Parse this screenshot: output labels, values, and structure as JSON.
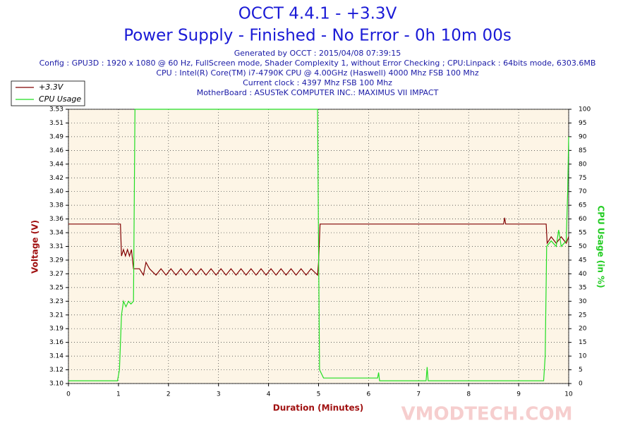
{
  "chart_data": {
    "type": "line",
    "title": "OCCT 4.4.1 - +3.3V",
    "subtitle": "Power Supply - Finished - No Error - 0h 10m 00s",
    "info": [
      "Generated by OCCT : 2015/04/08 07:39:15",
      "Config : GPU3D : 1920 x 1080 @ 60 Hz, FullScreen mode, Shader Complexity 1, without Error Checking ; CPU:Linpack : 64bits mode, 6303.6MB",
      "CPU : Intel(R) Core(TM) i7-4790K CPU @ 4.00GHz (Haswell) 4000 Mhz FSB 100 Mhz",
      "Current clock : 4397 Mhz FSB 100 Mhz",
      "MotherBoard : ASUSTeK COMPUTER INC.: MAXIMUS VII IMPACT"
    ],
    "watermark": "VMODTECH.COM",
    "x_label": "Duration (Minutes)",
    "y_label": "Voltage (V)",
    "y2_label": "CPU Usage (in %)",
    "xlim": [
      0,
      10
    ],
    "xticks": [
      0,
      1,
      2,
      3,
      4,
      5,
      6,
      7,
      8,
      9,
      10
    ],
    "ylim": [
      3.1,
      3.53
    ],
    "yticks": [
      {
        "value": 3.1,
        "label": "3.10"
      },
      {
        "value": 3.1215,
        "label": "3.12"
      },
      {
        "value": 3.143,
        "label": "3.14"
      },
      {
        "value": 3.1645,
        "label": "3.16"
      },
      {
        "value": 3.186,
        "label": "3.19"
      },
      {
        "value": 3.2075,
        "label": "3.21"
      },
      {
        "value": 3.229,
        "label": "3.23"
      },
      {
        "value": 3.2505,
        "label": "3.25"
      },
      {
        "value": 3.272,
        "label": "3.27"
      },
      {
        "value": 3.2935,
        "label": "3.29"
      },
      {
        "value": 3.315,
        "label": "3.31"
      },
      {
        "value": 3.3365,
        "label": "3.34"
      },
      {
        "value": 3.358,
        "label": "3.36"
      },
      {
        "value": 3.3795,
        "label": "3.38"
      },
      {
        "value": 3.401,
        "label": "3.40"
      },
      {
        "value": 3.4225,
        "label": "3.42"
      },
      {
        "value": 3.444,
        "label": "3.44"
      },
      {
        "value": 3.4655,
        "label": "3.46"
      },
      {
        "value": 3.487,
        "label": "3.49"
      },
      {
        "value": 3.5085,
        "label": "3.51"
      },
      {
        "value": 3.53,
        "label": "3.53"
      }
    ],
    "y2lim": [
      0,
      100
    ],
    "y2ticks": [
      0,
      5,
      10,
      15,
      20,
      25,
      30,
      35,
      40,
      45,
      50,
      55,
      60,
      65,
      70,
      75,
      80,
      85,
      90,
      95,
      100
    ],
    "grid": true,
    "series": [
      {
        "name": "+3.3V",
        "color": "#800000",
        "axis": "y",
        "x": [
          0,
          1.04,
          1.06,
          1.1,
          1.14,
          1.18,
          1.22,
          1.26,
          1.3,
          1.42,
          1.5,
          1.55,
          1.62,
          1.75,
          1.85,
          1.95,
          2.05,
          2.15,
          2.25,
          2.35,
          2.45,
          2.55,
          2.65,
          2.75,
          2.85,
          2.95,
          3.05,
          3.15,
          3.25,
          3.35,
          3.45,
          3.55,
          3.65,
          3.75,
          3.85,
          3.95,
          4.05,
          4.15,
          4.25,
          4.35,
          4.45,
          4.55,
          4.65,
          4.75,
          4.85,
          4.98,
          5.0,
          5.03,
          8.7,
          8.72,
          8.74,
          9.55,
          9.57,
          9.65,
          9.75,
          9.85,
          9.95,
          10
        ],
        "values": [
          3.35,
          3.35,
          3.3,
          3.31,
          3.3,
          3.31,
          3.3,
          3.31,
          3.28,
          3.28,
          3.27,
          3.29,
          3.28,
          3.27,
          3.28,
          3.27,
          3.28,
          3.27,
          3.28,
          3.27,
          3.28,
          3.27,
          3.28,
          3.27,
          3.28,
          3.27,
          3.28,
          3.27,
          3.28,
          3.27,
          3.28,
          3.27,
          3.28,
          3.27,
          3.28,
          3.27,
          3.28,
          3.27,
          3.28,
          3.27,
          3.28,
          3.27,
          3.28,
          3.27,
          3.28,
          3.27,
          3.29,
          3.35,
          3.35,
          3.36,
          3.35,
          3.35,
          3.32,
          3.33,
          3.32,
          3.33,
          3.32,
          3.33
        ]
      },
      {
        "name": "CPU Usage",
        "color": "#22dd22",
        "axis": "y2",
        "x": [
          0,
          0.5,
          0.98,
          1.02,
          1.06,
          1.1,
          1.15,
          1.2,
          1.25,
          1.3,
          1.33,
          4.98,
          5.0,
          5.02,
          5.1,
          6.18,
          6.2,
          6.22,
          7.15,
          7.17,
          7.19,
          9.5,
          9.53,
          9.56,
          9.65,
          9.75,
          9.8,
          9.85,
          9.95,
          9.98,
          10
        ],
        "values": [
          1,
          1,
          1,
          5,
          25,
          30,
          28,
          30,
          29,
          30,
          100,
          100,
          50,
          5,
          2,
          2,
          4,
          1,
          1,
          6,
          1,
          1,
          10,
          50,
          52,
          50,
          56,
          50,
          52,
          70,
          90
        ]
      }
    ]
  }
}
